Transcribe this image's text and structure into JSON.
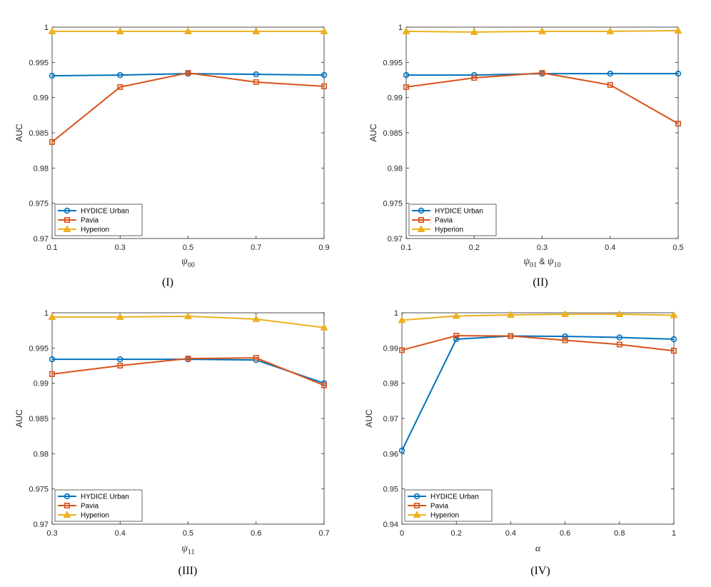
{
  "colors": {
    "hydice": "#0072BD",
    "pavia": "#D95319",
    "hyperion": "#EDB120"
  },
  "chart_data": [
    {
      "type": "line",
      "caption": "(I)",
      "xlabel": {
        "symbol": "ψ",
        "sub": "00"
      },
      "ylabel": "AUC",
      "x": [
        0.1,
        0.3,
        0.5,
        0.7,
        0.9
      ],
      "xticks": [
        "0.1",
        "0.3",
        "0.5",
        "0.7",
        "0.9"
      ],
      "xlim": [
        0.1,
        0.9
      ],
      "ylim": [
        0.97,
        1.0
      ],
      "yticks": [
        "0.97",
        "0.975",
        "0.98",
        "0.985",
        "0.99",
        "0.995",
        "1"
      ],
      "series": [
        {
          "name": "HYDICE Urban",
          "marker": "circle",
          "values": [
            0.9931,
            0.9932,
            0.9934,
            0.9933,
            0.9932
          ]
        },
        {
          "name": "Pavia",
          "marker": "square",
          "values": [
            0.9837,
            0.9915,
            0.9935,
            0.9922,
            0.9916
          ]
        },
        {
          "name": "Hyperion",
          "marker": "triangle",
          "values": [
            0.9994,
            0.9994,
            0.9994,
            0.9994,
            0.9994
          ]
        }
      ],
      "legend": "bottom-left"
    },
    {
      "type": "line",
      "caption": "(II)",
      "xlabel": {
        "symbol": "ψ",
        "sub": "01",
        "amp": " & ",
        "symbol2": "ψ",
        "sub2": "10"
      },
      "ylabel": "AUC",
      "x": [
        0.1,
        0.2,
        0.3,
        0.4,
        0.5
      ],
      "xticks": [
        "0.1",
        "0.2",
        "0.3",
        "0.4",
        "0.5"
      ],
      "xlim": [
        0.1,
        0.5
      ],
      "ylim": [
        0.97,
        1.0
      ],
      "yticks": [
        "0.97",
        "0.975",
        "0.98",
        "0.985",
        "0.99",
        "0.995",
        "1"
      ],
      "series": [
        {
          "name": "HYDICE Urban",
          "marker": "circle",
          "values": [
            0.9932,
            0.9932,
            0.9934,
            0.9934,
            0.9934
          ]
        },
        {
          "name": "Pavia",
          "marker": "square",
          "values": [
            0.9915,
            0.9928,
            0.9935,
            0.9918,
            0.9863
          ]
        },
        {
          "name": "Hyperion",
          "marker": "triangle",
          "values": [
            0.9994,
            0.9993,
            0.9994,
            0.9994,
            0.9995
          ]
        }
      ],
      "legend": "bottom-left"
    },
    {
      "type": "line",
      "caption": "(III)",
      "xlabel": {
        "symbol": "ψ",
        "sub": "11"
      },
      "ylabel": "AUC",
      "x": [
        0.3,
        0.4,
        0.5,
        0.6,
        0.7
      ],
      "xticks": [
        "0.3",
        "0.4",
        "0.5",
        "0.6",
        "0.7"
      ],
      "xlim": [
        0.3,
        0.7
      ],
      "ylim": [
        0.97,
        1.0
      ],
      "yticks": [
        "0.97",
        "0.975",
        "0.98",
        "0.985",
        "0.99",
        "0.995",
        "1"
      ],
      "series": [
        {
          "name": "HYDICE Urban",
          "marker": "circle",
          "values": [
            0.9934,
            0.9934,
            0.9934,
            0.9933,
            0.99
          ]
        },
        {
          "name": "Pavia",
          "marker": "square",
          "values": [
            0.9913,
            0.9925,
            0.9935,
            0.9936,
            0.9897
          ]
        },
        {
          "name": "Hyperion",
          "marker": "triangle",
          "values": [
            0.9994,
            0.9994,
            0.9995,
            0.9991,
            0.9979
          ]
        }
      ],
      "legend": "bottom-left"
    },
    {
      "type": "line",
      "caption": "(IV)",
      "xlabel": {
        "symbol": "α"
      },
      "ylabel": "AUC",
      "x": [
        0,
        0.2,
        0.4,
        0.6,
        0.8,
        1
      ],
      "xticks": [
        "0",
        "0.2",
        "0.4",
        "0.6",
        "0.8",
        "1"
      ],
      "xlim": [
        0,
        1
      ],
      "ylim": [
        0.94,
        1.0
      ],
      "yticks": [
        "0.94",
        "0.95",
        "0.96",
        "0.97",
        "0.98",
        "0.99",
        "1"
      ],
      "series": [
        {
          "name": "HYDICE Urban",
          "marker": "circle",
          "values": [
            0.9609,
            0.9925,
            0.9934,
            0.9933,
            0.993,
            0.9925
          ]
        },
        {
          "name": "Pavia",
          "marker": "square",
          "values": [
            0.9894,
            0.9935,
            0.9934,
            0.9922,
            0.991,
            0.9892
          ]
        },
        {
          "name": "Hyperion",
          "marker": "triangle",
          "values": [
            0.9979,
            0.9991,
            0.9994,
            0.9996,
            0.9996,
            0.9993
          ]
        }
      ],
      "legend": "bottom-left"
    }
  ]
}
